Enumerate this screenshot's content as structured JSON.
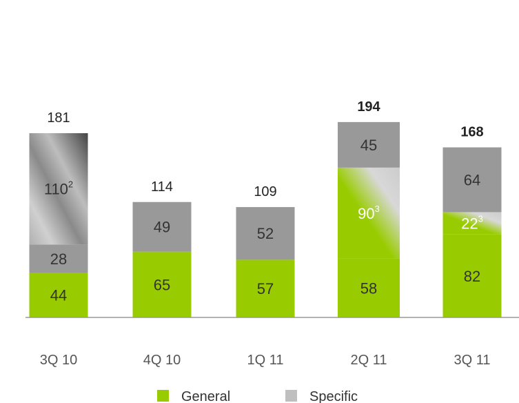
{
  "chart_data": {
    "type": "bar",
    "stacked": true,
    "categories": [
      "3Q 10",
      "4Q 10",
      "1Q 11",
      "2Q 11",
      "3Q 11"
    ],
    "series": [
      {
        "name": "General",
        "color": "#99cc00",
        "values": [
          44,
          65,
          57,
          58,
          82
        ]
      },
      {
        "name": "",
        "values": [
          0,
          0,
          0,
          90,
          22
        ],
        "labels": [
          "",
          "",
          "",
          "90",
          "22"
        ],
        "footnotes": [
          "",
          "",
          "",
          "3",
          "3"
        ],
        "style": "green-gradient"
      },
      {
        "name": "Specific",
        "color": "#999999",
        "values": [
          28,
          49,
          52,
          45,
          64
        ]
      },
      {
        "name": "",
        "values": [
          110,
          0,
          0,
          0,
          0
        ],
        "labels": [
          "110",
          "",
          "",
          "",
          ""
        ],
        "footnotes": [
          "2",
          "",
          "",
          "",
          ""
        ],
        "style": "grey-gradient"
      }
    ],
    "totals": [
      "181",
      "114",
      "109",
      "194",
      "168"
    ],
    "totals_bold": [
      false,
      false,
      false,
      true,
      true
    ],
    "legend": [
      {
        "label": "General",
        "color": "#99cc00"
      },
      {
        "label": "Specific",
        "color": "#bfbfbf"
      }
    ],
    "legend_position": "bottom",
    "title": "",
    "xlabel": "",
    "ylabel": "",
    "grid": false
  }
}
